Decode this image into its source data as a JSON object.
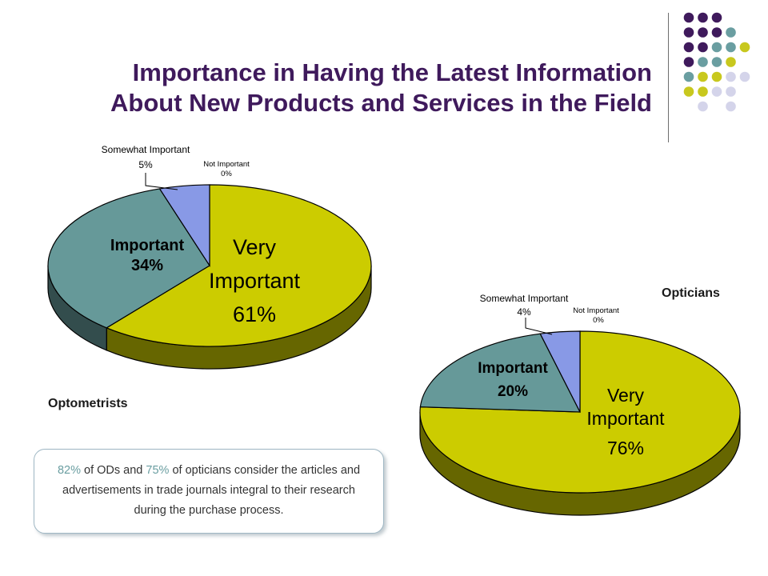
{
  "title": {
    "line1": "Importance in Having the Latest Information",
    "line2": "About New Products and Services in the Field"
  },
  "colors": {
    "title": "#3f1a5c",
    "very_important": "#cccc00",
    "important": "#669999",
    "somewhat_important": "#8899e6",
    "dot_purple": "#3f1a5c",
    "dot_teal": "#6a9ea1",
    "dot_yellow": "#c8c81e",
    "dot_lavender": "#d4d4ea"
  },
  "decoration": {
    "dot_grid": [
      [
        "purple",
        "purple",
        "purple",
        null,
        null
      ],
      [
        "purple",
        "purple",
        "purple",
        "teal",
        null
      ],
      [
        "purple",
        "purple",
        "teal",
        "teal",
        "yellow"
      ],
      [
        "purple",
        "teal",
        "teal",
        "yellow",
        null
      ],
      [
        "teal",
        "yellow",
        "yellow",
        "lavender",
        "lavender"
      ],
      [
        "yellow",
        "yellow",
        "lavender",
        "lavender",
        null
      ],
      [
        null,
        "lavender",
        null,
        "lavender",
        null
      ]
    ]
  },
  "labels": {
    "optometrists": "Optometrists",
    "opticians": "Opticians"
  },
  "chart_data": [
    {
      "type": "pie",
      "group": "Optometrists",
      "slices": [
        {
          "label": "Very Important",
          "value": 61,
          "display": "61%",
          "color": "#cccc00"
        },
        {
          "label": "Important",
          "value": 34,
          "display": "34%",
          "color": "#669999"
        },
        {
          "label": "Somewhat Important",
          "value": 5,
          "display": "5%",
          "color": "#8899e6"
        },
        {
          "label": "Not Important",
          "value": 0,
          "display": "0%",
          "color": "#999999"
        }
      ]
    },
    {
      "type": "pie",
      "group": "Opticians",
      "slices": [
        {
          "label": "Very Important",
          "value": 76,
          "display": "76%",
          "color": "#cccc00"
        },
        {
          "label": "Important",
          "value": 20,
          "display": "20%",
          "color": "#669999"
        },
        {
          "label": "Somewhat Important",
          "value": 4,
          "display": "4%",
          "color": "#8899e6"
        },
        {
          "label": "Not Important",
          "value": 0,
          "display": "0%",
          "color": "#999999"
        }
      ]
    }
  ],
  "callout": {
    "pct_ods": "82%",
    "text_1": " of ODs and ",
    "pct_opticians": "75%",
    "text_2": " of opticians consider the articles and advertisements in trade journals integral to their research during the purchase process."
  }
}
